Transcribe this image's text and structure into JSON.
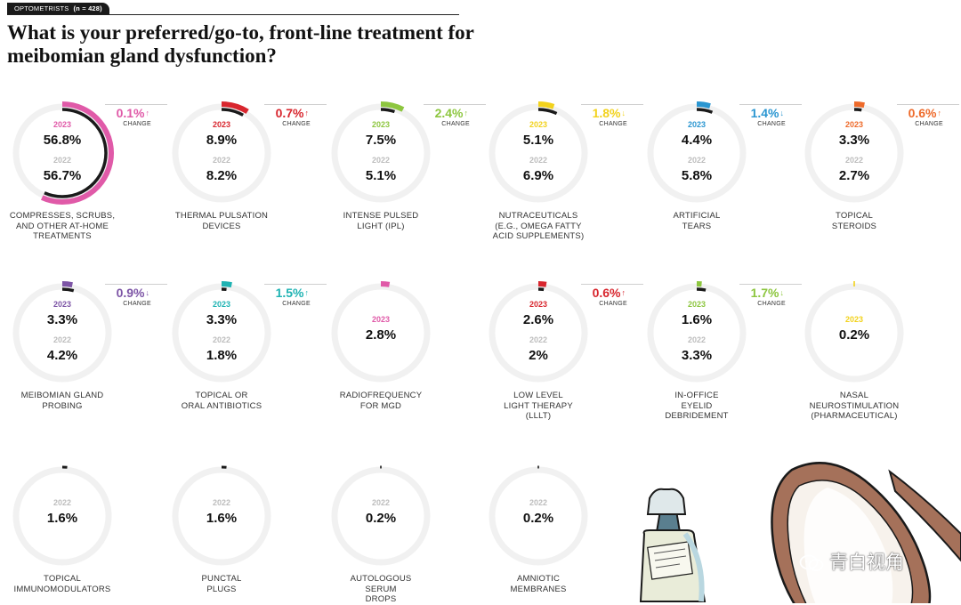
{
  "header": {
    "badge": "OPTOMETRISTS",
    "sample": "(n = 428)",
    "title": "What is your preferred/go-to, front-line treatment for meibomian gland dysfunction?"
  },
  "watermark": "青白视角",
  "chart_data": {
    "type": "radial-comparison",
    "title": "What is your preferred/go-to, front-line treatment for meibomian gland dysfunction?",
    "series_names": [
      "2023",
      "2022"
    ],
    "change_caption": "CHANGE",
    "items": [
      {
        "label": "COMPRESSES, SCRUBS, AND OTHER AT-HOME TREATMENTS",
        "label_lines": [
          "COMPRESSES, SCRUBS,",
          "AND OTHER AT-HOME",
          "TREATMENTS"
        ],
        "v2023": 56.8,
        "v2022": 56.7,
        "v2023_text": "56.8%",
        "v2022_text": "56.7%",
        "change": "0.1%",
        "direction": "up",
        "color": "#e05aa8"
      },
      {
        "label": "THERMAL PULSATION DEVICES",
        "label_lines": [
          "THERMAL PULSATION",
          "DEVICES"
        ],
        "v2023": 8.9,
        "v2022": 8.2,
        "v2023_text": "8.9%",
        "v2022_text": "8.2%",
        "change": "0.7%",
        "direction": "up",
        "color": "#d8262e"
      },
      {
        "label": "INTENSE PULSED LIGHT (IPL)",
        "label_lines": [
          "INTENSE PULSED",
          "LIGHT (IPL)"
        ],
        "v2023": 7.5,
        "v2022": 5.1,
        "v2023_text": "7.5%",
        "v2022_text": "5.1%",
        "change": "2.4%",
        "direction": "up",
        "color": "#8dc63f"
      },
      {
        "label": "NUTRACEUTICALS (E.G., OMEGA FATTY ACID SUPPLEMENTS)",
        "label_lines": [
          "NUTRACEUTICALS",
          "(E.G., OMEGA FATTY",
          "ACID SUPPLEMENTS)"
        ],
        "v2023": 5.1,
        "v2022": 6.9,
        "v2023_text": "5.1%",
        "v2022_text": "6.9%",
        "change": "1.8%",
        "direction": "down",
        "color": "#f2d21c"
      },
      {
        "label": "ARTIFICIAL TEARS",
        "label_lines": [
          "ARTIFICIAL",
          "TEARS"
        ],
        "v2023": 4.4,
        "v2022": 5.8,
        "v2023_text": "4.4%",
        "v2022_text": "5.8%",
        "change": "1.4%",
        "direction": "down",
        "color": "#2a96d1"
      },
      {
        "label": "TOPICAL STEROIDS",
        "label_lines": [
          "TOPICAL",
          "STEROIDS"
        ],
        "v2023": 3.3,
        "v2022": 2.7,
        "v2023_text": "3.3%",
        "v2022_text": "2.7%",
        "change": "0.6%",
        "direction": "up",
        "color": "#ee6a2a"
      },
      {
        "label": "MEIBOMIAN GLAND PROBING",
        "label_lines": [
          "MEIBOMIAN GLAND",
          "PROBING"
        ],
        "v2023": 3.3,
        "v2022": 4.2,
        "v2023_text": "3.3%",
        "v2022_text": "4.2%",
        "change": "0.9%",
        "direction": "down",
        "color": "#7d55a6"
      },
      {
        "label": "TOPICAL OR ORAL ANTIBIOTICS",
        "label_lines": [
          "TOPICAL OR",
          "ORAL ANTIBIOTICS"
        ],
        "v2023": 3.3,
        "v2022": 1.8,
        "v2023_text": "3.3%",
        "v2022_text": "1.8%",
        "change": "1.5%",
        "direction": "up",
        "color": "#1fb3b3"
      },
      {
        "label": "RADIOFREQUENCY FOR MGD",
        "label_lines": [
          "RADIOFREQUENCY",
          "FOR MGD"
        ],
        "v2023": 2.8,
        "v2022": null,
        "v2023_text": "2.8%",
        "v2022_text": null,
        "change": null,
        "direction": null,
        "color": "#e05aa8"
      },
      {
        "label": "LOW LEVEL LIGHT THERAPY (LLLT)",
        "label_lines": [
          "LOW LEVEL",
          "LIGHT THERAPY",
          "(LLLT)"
        ],
        "v2023": 2.6,
        "v2022": 2.0,
        "v2023_text": "2.6%",
        "v2022_text": "2%",
        "change": "0.6%",
        "direction": "up",
        "color": "#d8262e"
      },
      {
        "label": "IN-OFFICE EYELID DEBRIDEMENT",
        "label_lines": [
          "IN-OFFICE",
          "EYELID",
          "DEBRIDEMENT"
        ],
        "v2023": 1.6,
        "v2022": 3.3,
        "v2023_text": "1.6%",
        "v2022_text": "3.3%",
        "change": "1.7%",
        "direction": "down",
        "color": "#8dc63f"
      },
      {
        "label": "NASAL NEUROSTIMULATION (PHARMACEUTICAL)",
        "label_lines": [
          "NASAL",
          "NEUROSTIMULATION",
          "(PHARMACEUTICAL)"
        ],
        "v2023": 0.2,
        "v2022": null,
        "v2023_text": "0.2%",
        "v2022_text": null,
        "change": null,
        "direction": null,
        "color": "#f2d21c"
      },
      {
        "label": "TOPICAL IMMUNOMODULATORS",
        "label_lines": [
          "TOPICAL",
          "IMMUNOMODULATORS"
        ],
        "v2023": null,
        "v2022": 1.6,
        "v2023_text": null,
        "v2022_text": "1.6%",
        "change": null,
        "direction": null,
        "color": "#999999"
      },
      {
        "label": "PUNCTAL PLUGS",
        "label_lines": [
          "PUNCTAL",
          "PLUGS"
        ],
        "v2023": null,
        "v2022": 1.6,
        "v2023_text": null,
        "v2022_text": "1.6%",
        "change": null,
        "direction": null,
        "color": "#999999"
      },
      {
        "label": "AUTOLOGOUS SERUM DROPS",
        "label_lines": [
          "AUTOLOGOUS",
          "SERUM",
          "DROPS"
        ],
        "v2023": null,
        "v2022": 0.2,
        "v2023_text": null,
        "v2022_text": "0.2%",
        "change": null,
        "direction": null,
        "color": "#999999"
      },
      {
        "label": "AMNIOTIC MEMBRANES",
        "label_lines": [
          "AMNIOTIC",
          "MEMBRANES"
        ],
        "v2023": null,
        "v2022": 0.2,
        "v2023_text": null,
        "v2022_text": "0.2%",
        "change": null,
        "direction": null,
        "color": "#999999"
      }
    ]
  }
}
